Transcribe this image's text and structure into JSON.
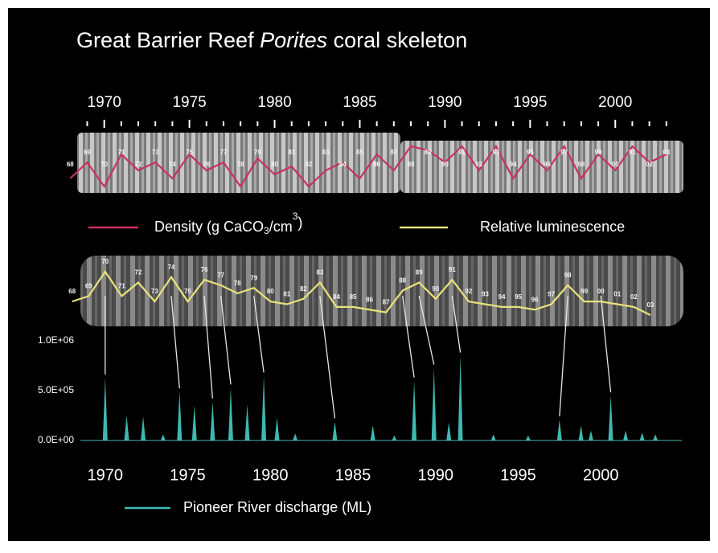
{
  "title": {
    "parts": [
      "Great Barrier Reef ",
      "Porites",
      " coral skeleton"
    ]
  },
  "band_labels": [
    {
      "year": 1968,
      "label": "68"
    },
    {
      "year": 1969,
      "label": "69"
    },
    {
      "year": 1970,
      "label": "70"
    },
    {
      "year": 1971,
      "label": "71"
    },
    {
      "year": 1972,
      "label": "72"
    },
    {
      "year": 1973,
      "label": "73"
    },
    {
      "year": 1974,
      "label": "74"
    },
    {
      "year": 1975,
      "label": "75"
    },
    {
      "year": 1976,
      "label": "76"
    },
    {
      "year": 1977,
      "label": "77"
    },
    {
      "year": 1978,
      "label": "78"
    },
    {
      "year": 1979,
      "label": "79"
    },
    {
      "year": 1980,
      "label": "80"
    },
    {
      "year": 1981,
      "label": "81"
    },
    {
      "year": 1982,
      "label": "82"
    },
    {
      "year": 1983,
      "label": "83"
    },
    {
      "year": 1984,
      "label": "84"
    },
    {
      "year": 1985,
      "label": "85"
    },
    {
      "year": 1986,
      "label": "86"
    },
    {
      "year": 1987,
      "label": "87"
    },
    {
      "year": 1988,
      "label": "88"
    },
    {
      "year": 1989,
      "label": "89"
    },
    {
      "year": 1990,
      "label": "90"
    },
    {
      "year": 1991,
      "label": "91"
    },
    {
      "year": 1992,
      "label": "92"
    },
    {
      "year": 1993,
      "label": "93"
    },
    {
      "year": 1994,
      "label": "94"
    },
    {
      "year": 1995,
      "label": "95"
    },
    {
      "year": 1996,
      "label": "96"
    },
    {
      "year": 1997,
      "label": "97"
    },
    {
      "year": 1998,
      "label": "98"
    },
    {
      "year": 1999,
      "label": "99"
    },
    {
      "year": 2000,
      "label": "00"
    },
    {
      "year": 2001,
      "label": "01"
    },
    {
      "year": 2002,
      "label": "02"
    },
    {
      "year": 2003,
      "label": "03"
    }
  ],
  "chart_data": [
    {
      "type": "line",
      "name_parts": [
        {
          "text": "Density (g CaCO"
        },
        {
          "text": "3",
          "sub": true
        },
        {
          "text": "/cm"
        },
        {
          "text": "3",
          "sup": true
        },
        {
          "text": ")"
        }
      ],
      "color": "#c8325e",
      "xlim": [
        1968.6,
        2004
      ],
      "xticks": [
        1970,
        1975,
        1980,
        1985,
        1990,
        1995,
        2000
      ],
      "xticks_minor": [
        1969,
        1971,
        1972,
        1973,
        1974,
        1976,
        1977,
        1978,
        1979,
        1981,
        1982,
        1983,
        1984,
        1986,
        1987,
        1988,
        1989,
        1991,
        1992,
        1993,
        1994,
        1996,
        1997,
        1998,
        1999,
        2001,
        2002,
        2003
      ],
      "x": [
        1968,
        1969,
        1970,
        1971,
        1972,
        1973,
        1974,
        1975,
        1976,
        1977,
        1978,
        1979,
        1980,
        1981,
        1982,
        1983,
        1984,
        1985,
        1986,
        1987,
        1988,
        1989,
        1990,
        1991,
        1992,
        1993,
        1994,
        1995,
        1996,
        1997,
        1998,
        1999,
        2000,
        2001,
        2002,
        2003
      ],
      "values": [
        0.4,
        0.6,
        0.3,
        0.7,
        0.5,
        0.6,
        0.4,
        0.7,
        0.5,
        0.6,
        0.3,
        0.65,
        0.45,
        0.55,
        0.3,
        0.5,
        0.6,
        0.4,
        0.7,
        0.5,
        0.8,
        0.75,
        0.6,
        0.8,
        0.5,
        0.8,
        0.4,
        0.7,
        0.5,
        0.8,
        0.4,
        0.7,
        0.5,
        0.8,
        0.6,
        0.7
      ]
    },
    {
      "type": "line",
      "name": "Relative luminescence",
      "color": "#e8e27a",
      "xlim": [
        1968.5,
        2005
      ],
      "x": [
        1968,
        1969,
        1970,
        1971,
        1972,
        1973,
        1974,
        1975,
        1976,
        1977,
        1978,
        1979,
        1980,
        1981,
        1982,
        1983,
        1984,
        1985,
        1986,
        1987,
        1988,
        1989,
        1990,
        1991,
        1992,
        1993,
        1994,
        1995,
        1996,
        1997,
        1998,
        1999,
        2000,
        2001,
        2002,
        2003
      ],
      "values": [
        0.4,
        0.5,
        0.95,
        0.5,
        0.75,
        0.4,
        0.85,
        0.4,
        0.8,
        0.7,
        0.55,
        0.65,
        0.4,
        0.35,
        0.45,
        0.75,
        0.3,
        0.3,
        0.25,
        0.2,
        0.6,
        0.75,
        0.45,
        0.8,
        0.4,
        0.35,
        0.3,
        0.3,
        0.25,
        0.35,
        0.7,
        0.4,
        0.4,
        0.35,
        0.3,
        0.15
      ]
    },
    {
      "type": "spike",
      "name": "Pioneer River discharge (ML)",
      "color": "#3fb8af",
      "xlim": [
        1968.5,
        2005
      ],
      "ylim": [
        0,
        1100000
      ],
      "xticks": [
        1970,
        1975,
        1980,
        1985,
        1990,
        1995,
        2000
      ],
      "yticks": [
        {
          "value": 0,
          "label": "0.0E+00"
        },
        {
          "value": 500000,
          "label": "5.0E+05"
        },
        {
          "value": 1000000,
          "label": "1.0E+06"
        }
      ],
      "x": [
        1970.0,
        1971.3,
        1972.3,
        1973.5,
        1974.5,
        1975.4,
        1976.5,
        1977.6,
        1978.6,
        1979.6,
        1980.4,
        1981.5,
        1983.9,
        1986.2,
        1987.5,
        1988.7,
        1989.9,
        1990.8,
        1991.5,
        1993.5,
        1995.6,
        1997.5,
        1998.8,
        1999.4,
        2000.6,
        2001.5,
        2002.5,
        2003.3
      ],
      "values": [
        630000,
        250000,
        240000,
        60000,
        490000,
        350000,
        390000,
        530000,
        360000,
        650000,
        230000,
        70000,
        190000,
        150000,
        50000,
        600000,
        730000,
        180000,
        850000,
        60000,
        50000,
        210000,
        150000,
        100000,
        450000,
        100000,
        80000,
        60000
      ]
    }
  ]
}
